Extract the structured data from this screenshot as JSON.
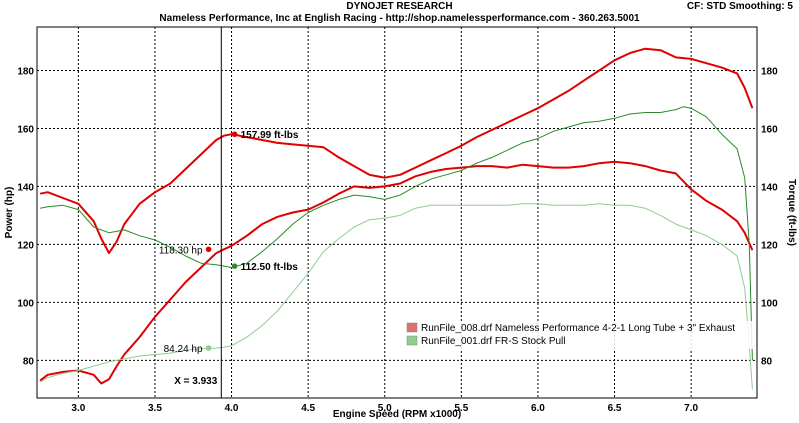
{
  "header": {
    "title": "DYNOJET RESEARCH",
    "subtitle": "Nameless Performance, Inc at English Racing - http://shop.namelessperformance.com - 360.263.5001",
    "cf_info": "CF: STD  Smoothing: 5"
  },
  "chart_data": {
    "type": "line",
    "xlabel": "Engine Speed (RPM x1000)",
    "ylabel_left": "Power (hp)",
    "ylabel_right": "Torque (ft-lbs)",
    "xlim": [
      2.73,
      7.43
    ],
    "ylim": [
      67,
      195
    ],
    "x_ticks": [
      "3.0",
      "3.5",
      "4.0",
      "4.5",
      "5.0",
      "5.5",
      "6.0",
      "6.5",
      "7.0"
    ],
    "x_tick_values": [
      3.0,
      3.5,
      4.0,
      4.5,
      5.0,
      5.5,
      6.0,
      6.5,
      7.0
    ],
    "y_ticks": [
      "80",
      "100",
      "120",
      "140",
      "160",
      "180"
    ],
    "y_tick_values": [
      80,
      100,
      120,
      140,
      160,
      180
    ],
    "grid": true,
    "legend_position": "bottom-right",
    "cursor": {
      "x": 3.933,
      "label": "X = 3.933"
    },
    "annotations": [
      {
        "text": "157.99 ft-lbs",
        "x": 4.02,
        "y": 158.0,
        "color": "#e00000",
        "text_color": "#000000",
        "side": "right"
      },
      {
        "text": "118.30 hp",
        "x": 3.85,
        "y": 118.3,
        "color": "#e00000",
        "text_color": "#999999",
        "side": "left"
      },
      {
        "text": "112.50 ft-lbs",
        "x": 4.02,
        "y": 112.5,
        "color": "#2a8a2a",
        "text_color": "#000000",
        "side": "right"
      },
      {
        "text": "84.24 hp",
        "x": 3.85,
        "y": 84.24,
        "color": "#8fce8f",
        "text_color": "#999999",
        "side": "left"
      }
    ],
    "series": [
      {
        "name": "RunFile_008.drf Nameless Performance 4-2-1 Long Tube + 3\" Exhaust",
        "role": "torque",
        "color": "#e00000",
        "width": 2,
        "x": [
          2.75,
          2.8,
          2.9,
          3.0,
          3.1,
          3.15,
          3.2,
          3.25,
          3.3,
          3.4,
          3.5,
          3.6,
          3.7,
          3.8,
          3.9,
          3.95,
          4.0,
          4.1,
          4.2,
          4.3,
          4.4,
          4.5,
          4.6,
          4.7,
          4.8,
          4.9,
          5.0,
          5.1,
          5.2,
          5.3,
          5.4,
          5.5,
          5.6,
          5.7,
          5.8,
          5.9,
          6.0,
          6.1,
          6.2,
          6.3,
          6.4,
          6.5,
          6.6,
          6.7,
          6.8,
          6.9,
          7.0,
          7.1,
          7.2,
          7.3,
          7.35,
          7.4
        ],
        "y": [
          137.5,
          138.0,
          136.0,
          134.0,
          128.0,
          122.0,
          117.0,
          121.0,
          127.0,
          134.0,
          138.0,
          141.0,
          146.0,
          151.0,
          156.0,
          157.5,
          158.0,
          157.0,
          156.0,
          155.0,
          154.5,
          154.0,
          153.5,
          150.0,
          147.0,
          144.0,
          143.0,
          144.0,
          146.5,
          149.0,
          151.5,
          154.0,
          157.0,
          159.5,
          162.0,
          164.5,
          167.0,
          170.0,
          173.0,
          176.5,
          180.0,
          183.5,
          186.0,
          187.5,
          187.0,
          184.5,
          184.0,
          182.5,
          181.0,
          179.0,
          174.0,
          167.0
        ]
      },
      {
        "name": "RunFile_008.drf Nameless Performance 4-2-1 Long Tube + 3\" Exhaust",
        "role": "power",
        "color": "#e00000",
        "width": 2,
        "x": [
          2.75,
          2.8,
          2.9,
          3.0,
          3.1,
          3.15,
          3.2,
          3.25,
          3.3,
          3.4,
          3.5,
          3.6,
          3.7,
          3.8,
          3.9,
          3.95,
          4.0,
          4.1,
          4.2,
          4.3,
          4.4,
          4.5,
          4.6,
          4.7,
          4.8,
          4.9,
          5.0,
          5.1,
          5.2,
          5.3,
          5.4,
          5.5,
          5.6,
          5.7,
          5.8,
          5.9,
          6.0,
          6.1,
          6.2,
          6.3,
          6.4,
          6.5,
          6.6,
          6.7,
          6.8,
          6.9,
          7.0,
          7.1,
          7.2,
          7.3,
          7.35,
          7.4
        ],
        "y": [
          73.0,
          75.0,
          76.0,
          76.5,
          75.0,
          72.0,
          73.5,
          78.0,
          82.0,
          88.0,
          95.0,
          101.0,
          107.0,
          112.0,
          117.0,
          118.3,
          119.5,
          123.0,
          127.0,
          129.5,
          131.0,
          132.0,
          134.5,
          137.5,
          140.0,
          139.5,
          140.0,
          141.0,
          143.5,
          145.0,
          146.0,
          146.5,
          147.0,
          147.0,
          146.5,
          147.5,
          147.0,
          146.5,
          146.5,
          147.0,
          148.0,
          148.5,
          148.0,
          147.0,
          145.5,
          144.5,
          139.0,
          135.0,
          132.0,
          128.0,
          124.0,
          118.0
        ]
      },
      {
        "name": "RunFile_001.drf FR-S Stock Pull",
        "role": "torque",
        "color": "#2a8a2a",
        "width": 1,
        "x": [
          2.75,
          2.8,
          2.9,
          3.0,
          3.1,
          3.2,
          3.3,
          3.4,
          3.5,
          3.6,
          3.7,
          3.8,
          3.9,
          3.95,
          4.0,
          4.1,
          4.2,
          4.3,
          4.4,
          4.5,
          4.6,
          4.7,
          4.8,
          4.9,
          5.0,
          5.1,
          5.2,
          5.3,
          5.4,
          5.5,
          5.6,
          5.7,
          5.8,
          5.9,
          6.0,
          6.1,
          6.2,
          6.3,
          6.4,
          6.5,
          6.6,
          6.7,
          6.8,
          6.9,
          6.95,
          7.0,
          7.1,
          7.2,
          7.3,
          7.35,
          7.38,
          7.4
        ],
        "y": [
          132.5,
          133.0,
          133.5,
          132.0,
          126.0,
          124.0,
          125.0,
          123.0,
          121.5,
          119.0,
          116.0,
          113.5,
          113.0,
          112.5,
          112.0,
          113.5,
          117.5,
          122.0,
          127.0,
          131.0,
          133.5,
          135.5,
          137.0,
          136.5,
          135.5,
          137.0,
          140.0,
          142.5,
          144.0,
          145.5,
          148.0,
          150.0,
          152.5,
          155.0,
          156.5,
          159.0,
          160.5,
          162.0,
          162.5,
          163.5,
          165.0,
          165.5,
          165.5,
          166.5,
          167.5,
          167.0,
          164.0,
          158.0,
          153.0,
          143.0,
          120.0,
          80.0
        ]
      },
      {
        "name": "RunFile_001.drf FR-S Stock Pull",
        "role": "power",
        "color": "#8fce8f",
        "width": 1,
        "x": [
          2.75,
          2.8,
          2.9,
          3.0,
          3.1,
          3.2,
          3.3,
          3.4,
          3.5,
          3.6,
          3.7,
          3.8,
          3.9,
          3.95,
          4.0,
          4.1,
          4.2,
          4.3,
          4.4,
          4.5,
          4.6,
          4.7,
          4.8,
          4.9,
          5.0,
          5.1,
          5.2,
          5.3,
          5.4,
          5.5,
          5.6,
          5.7,
          5.8,
          5.9,
          6.0,
          6.1,
          6.2,
          6.3,
          6.4,
          6.5,
          6.6,
          6.7,
          6.8,
          6.9,
          7.0,
          7.1,
          7.2,
          7.3,
          7.35,
          7.38,
          7.4
        ],
        "y": [
          72.5,
          74.0,
          75.5,
          76.5,
          78.0,
          79.5,
          80.5,
          81.5,
          82.0,
          82.5,
          83.5,
          84.0,
          84.2,
          84.5,
          85.0,
          88.0,
          92.0,
          97.0,
          103.5,
          110.0,
          117.5,
          122.0,
          126.0,
          128.5,
          129.0,
          130.0,
          132.5,
          133.5,
          133.5,
          133.5,
          133.5,
          133.5,
          133.5,
          134.0,
          134.0,
          133.5,
          133.5,
          133.5,
          134.0,
          133.5,
          133.5,
          132.5,
          130.0,
          127.0,
          125.0,
          123.0,
          120.0,
          116.0,
          105.0,
          85.0,
          70.0
        ]
      }
    ],
    "legend": [
      {
        "label": "RunFile_008.drf Nameless Performance 4-2-1 Long Tube + 3\" Exhaust",
        "color": "#e07070"
      },
      {
        "label": "RunFile_001.drf FR-S Stock Pull",
        "color": "#8fce8f"
      }
    ]
  }
}
